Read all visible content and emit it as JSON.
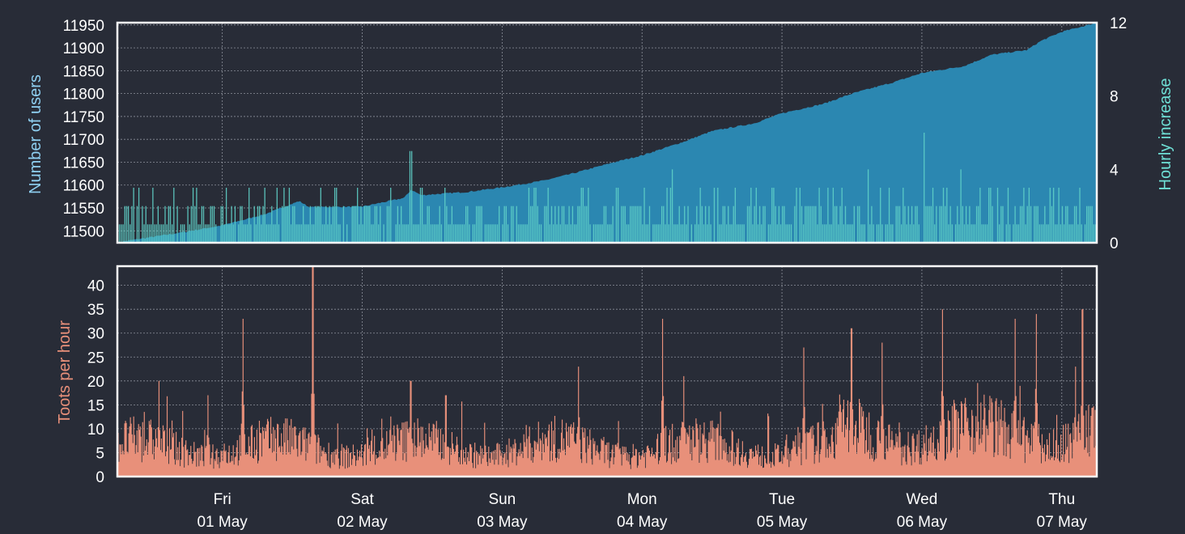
{
  "colors": {
    "background": "#282c37",
    "users_area": "#2b87b1",
    "hourly_bars": "#5fd0c8",
    "toots": "#e8907a",
    "frame": "#ffffff",
    "users_label": "#8fd0f2",
    "hourly_label": "#6fe0d6",
    "toots_label": "#e8907a"
  },
  "chart_data": [
    {
      "type": "area",
      "title": "",
      "ylabel": "Number of users",
      "y2label": "Hourly increase",
      "ylim": [
        11474,
        11955
      ],
      "y2lim": [
        0,
        12
      ],
      "yticks": [
        11500,
        11550,
        11600,
        11650,
        11700,
        11750,
        11800,
        11850,
        11900,
        11950
      ],
      "y2ticks": [
        0,
        4,
        8,
        12
      ],
      "grid": true,
      "x_range_days": [
        -0.75,
        6.25
      ],
      "x_unit": "days since Fri 01 May 00:00",
      "series": [
        {
          "name": "Number of users",
          "kind": "area",
          "x": [
            -0.75,
            -0.6,
            -0.3,
            0,
            0.3,
            0.55,
            0.62,
            1.0,
            1.3,
            1.35,
            1.42,
            1.75,
            2.0,
            2.3,
            2.5,
            2.8,
            3.0,
            3.3,
            3.5,
            3.8,
            4.0,
            4.3,
            4.5,
            4.8,
            5.0,
            5.3,
            5.5,
            5.75,
            5.85,
            6.0,
            6.25
          ],
          "values": [
            11475,
            11482,
            11496,
            11512,
            11536,
            11565,
            11552,
            11553,
            11572,
            11590,
            11578,
            11585,
            11595,
            11610,
            11625,
            11650,
            11665,
            11695,
            11718,
            11735,
            11757,
            11778,
            11800,
            11825,
            11845,
            11860,
            11885,
            11895,
            11915,
            11935,
            11955
          ]
        },
        {
          "name": "Hourly increase",
          "kind": "bar",
          "axis": "secondary",
          "base_level": 2,
          "peaks": [
            {
              "x": 1.35,
              "y": 5
            },
            {
              "x": 3.22,
              "y": 4
            },
            {
              "x": 5.02,
              "y": 6
            },
            {
              "x": 4.62,
              "y": 4
            },
            {
              "x": 5.28,
              "y": 4
            }
          ]
        }
      ]
    },
    {
      "type": "area",
      "title": "",
      "ylabel": "Toots per hour",
      "ylim": [
        0,
        44
      ],
      "yticks": [
        0,
        5,
        10,
        15,
        20,
        25,
        30,
        35,
        40
      ],
      "grid": true,
      "x_range_days": [
        -0.75,
        6.25
      ],
      "xtick_days": [
        0,
        1,
        2,
        3,
        4,
        5,
        6
      ],
      "xticks": [
        {
          "day": "Fri",
          "date": "01 May"
        },
        {
          "day": "Sat",
          "date": "02 May"
        },
        {
          "day": "Sun",
          "date": "03 May"
        },
        {
          "day": "Mon",
          "date": "04 May"
        },
        {
          "day": "Tue",
          "date": "05 May"
        },
        {
          "day": "Wed",
          "date": "06 May"
        },
        {
          "day": "Thu",
          "date": "07 May"
        }
      ],
      "baseline_level": 7,
      "peaks": [
        {
          "x": -0.45,
          "y": 20
        },
        {
          "x": -0.1,
          "y": 17
        },
        {
          "x": 0.15,
          "y": 33
        },
        {
          "x": 0.65,
          "y": 44
        },
        {
          "x": 1.35,
          "y": 20
        },
        {
          "x": 1.6,
          "y": 17
        },
        {
          "x": 2.55,
          "y": 23
        },
        {
          "x": 3.15,
          "y": 33
        },
        {
          "x": 3.3,
          "y": 21
        },
        {
          "x": 4.16,
          "y": 27
        },
        {
          "x": 4.5,
          "y": 31
        },
        {
          "x": 4.72,
          "y": 28
        },
        {
          "x": 5.15,
          "y": 35
        },
        {
          "x": 5.67,
          "y": 33
        },
        {
          "x": 5.82,
          "y": 34
        },
        {
          "x": 6.15,
          "y": 35
        },
        {
          "x": 6.1,
          "y": 23
        }
      ]
    }
  ]
}
